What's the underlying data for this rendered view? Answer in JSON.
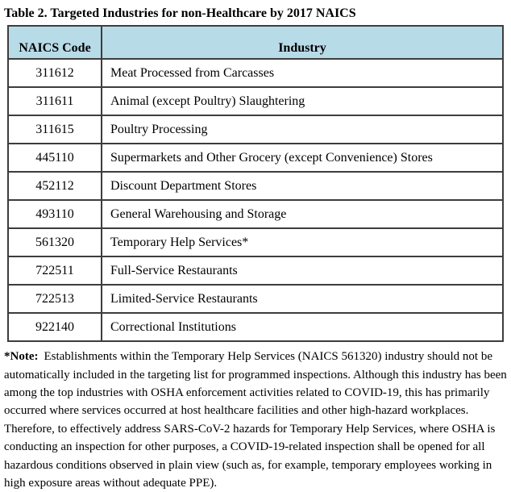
{
  "title": "Table 2. Targeted Industries for non-Healthcare by 2017 NAICS",
  "table": {
    "header_bg": "#b8dbe8",
    "border_color": "#3d3d3d",
    "columns": [
      "NAICS Code",
      "Industry"
    ],
    "rows": [
      {
        "code": "311612",
        "industry": "Meat Processed from Carcasses"
      },
      {
        "code": "311611",
        "industry": "Animal (except Poultry) Slaughtering"
      },
      {
        "code": "311615",
        "industry": "Poultry Processing"
      },
      {
        "code": "445110",
        "industry": "Supermarkets and Other Grocery (except Convenience) Stores"
      },
      {
        "code": "452112",
        "industry": "Discount Department Stores"
      },
      {
        "code": "493110",
        "industry": "General Warehousing and Storage"
      },
      {
        "code": "561320",
        "industry": "Temporary Help Services*"
      },
      {
        "code": "722511",
        "industry": "Full-Service Restaurants"
      },
      {
        "code": "722513",
        "industry": "Limited-Service Restaurants"
      },
      {
        "code": "922140",
        "industry": "Correctional Institutions"
      }
    ]
  },
  "note": {
    "label": "*Note:",
    "text": "Establishments within the Temporary Help Services (NAICS 561320) industry should not be automatically included in the targeting list for programmed inspections. Although this industry has been among the top industries with OSHA enforcement activities related to COVID-19, this has primarily occurred where services occurred at host healthcare facilities and other high-hazard workplaces. Therefore, to effectively address SARS-CoV-2 hazards for Temporary Help Services, where OSHA is conducting an inspection for other purposes, a COVID-19-related inspection shall be opened for all hazardous conditions observed in plain view (such as, for example, temporary employees working in high exposure areas without adequate PPE)."
  }
}
